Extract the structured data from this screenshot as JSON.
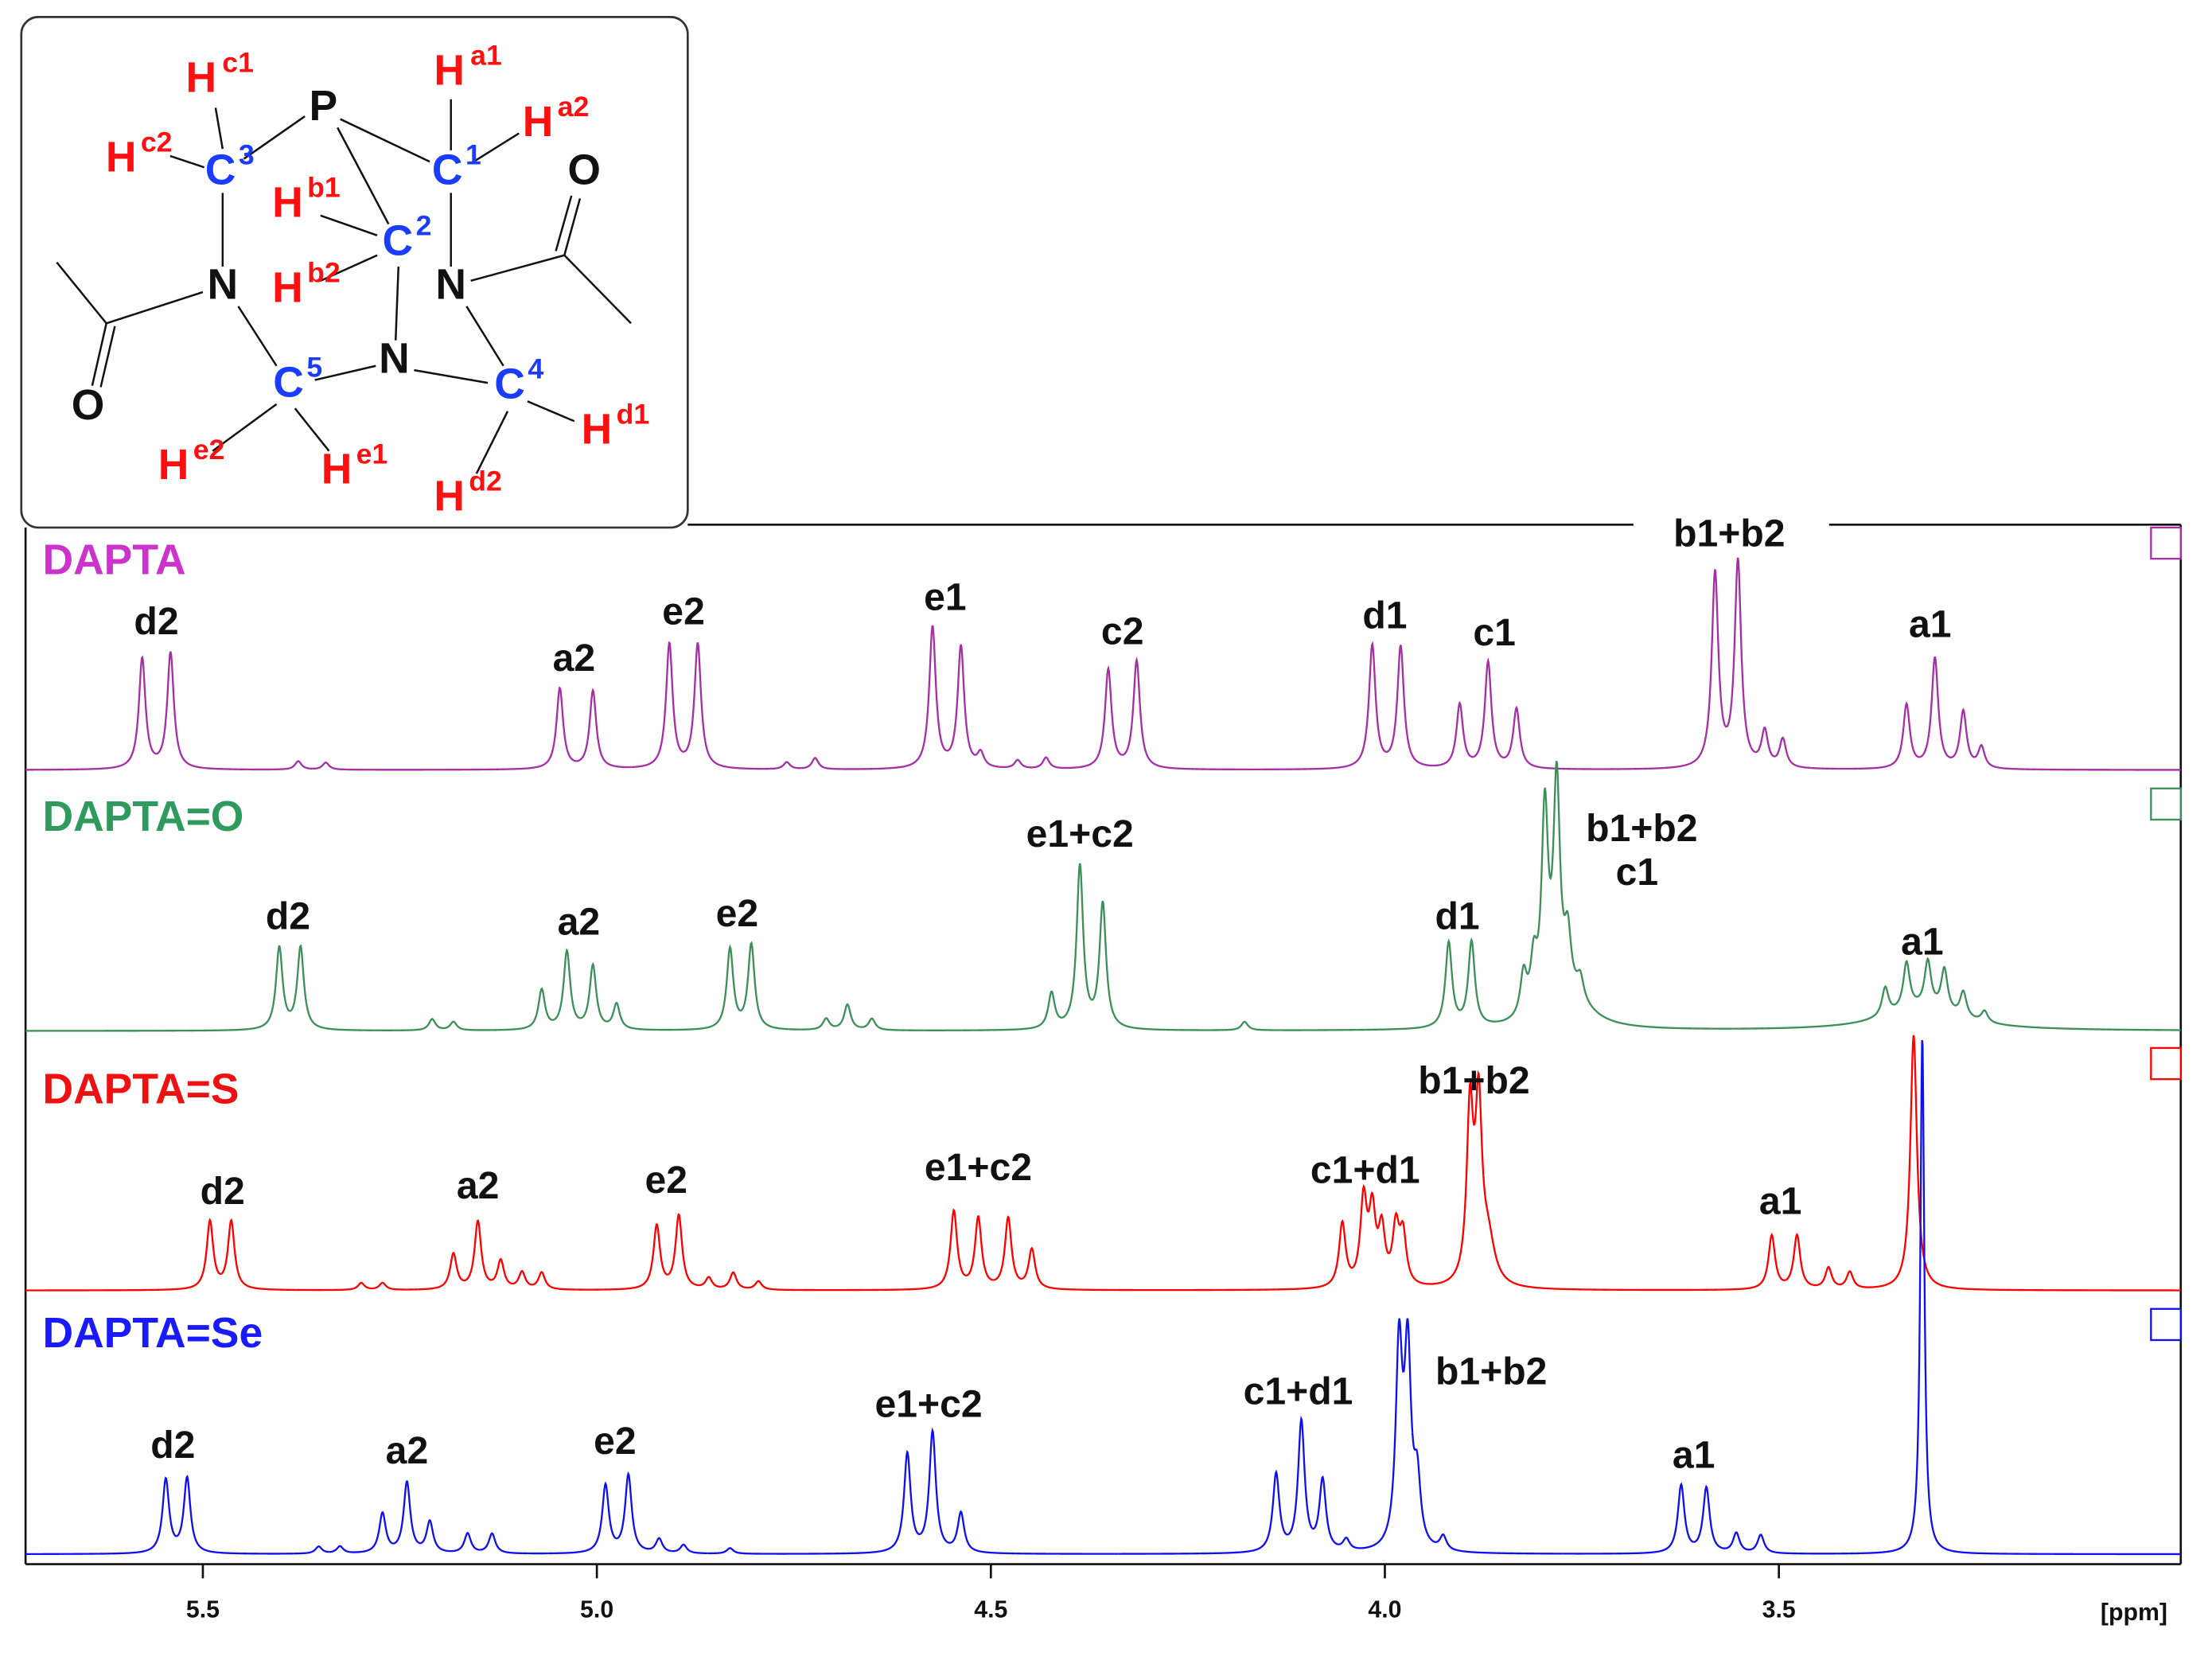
{
  "structure": {
    "atoms": [
      {
        "symbol": "H",
        "label": "c1"
      },
      {
        "symbol": "P",
        "label": null
      },
      {
        "symbol": "H",
        "label": "a1"
      },
      {
        "symbol": "H",
        "label": "a2"
      },
      {
        "symbol": "H",
        "label": "c2"
      },
      {
        "symbol": "C",
        "label": "3"
      },
      {
        "symbol": "C",
        "label": "1"
      },
      {
        "symbol": "O",
        "label": null
      },
      {
        "symbol": "H",
        "label": "b1"
      },
      {
        "symbol": "C",
        "label": "2"
      },
      {
        "symbol": "H",
        "label": "b2"
      },
      {
        "symbol": "N",
        "label": null
      },
      {
        "symbol": "N",
        "label": null
      },
      {
        "symbol": "N",
        "label": null
      },
      {
        "symbol": "C",
        "label": "5"
      },
      {
        "symbol": "C",
        "label": "4"
      },
      {
        "symbol": "O",
        "label": null
      },
      {
        "symbol": "H",
        "label": "d1"
      },
      {
        "symbol": "H",
        "label": "e2"
      },
      {
        "symbol": "H",
        "label": "e1"
      },
      {
        "symbol": "H",
        "label": "d2"
      }
    ]
  },
  "chart_data": {
    "type": "nmr",
    "xlabel": "[ppm]",
    "xlim": [
      5.725,
      2.99
    ],
    "xticks": [
      5.5,
      {
        "value": 5,
        "label": "5.0"
      },
      4.5,
      {
        "value": 4,
        "label": "4.0"
      },
      3.5
    ],
    "series": [
      {
        "name": "DAPTA",
        "color": "#a62fa6",
        "name_color": "#cc33cc",
        "linewidth": 0.005,
        "peaks": [
          [
            5.577,
            78
          ],
          [
            5.541,
            82
          ],
          [
            5.379,
            6
          ],
          [
            5.344,
            5
          ],
          [
            5.047,
            57
          ],
          [
            5.005,
            55
          ],
          [
            4.908,
            88
          ],
          [
            4.872,
            88
          ],
          [
            4.759,
            5
          ],
          [
            4.723,
            8
          ],
          [
            4.574,
            100
          ],
          [
            4.538,
            86
          ],
          [
            4.513,
            10
          ],
          [
            4.466,
            6
          ],
          [
            4.43,
            8
          ],
          [
            4.351,
            70
          ],
          [
            4.315,
            76
          ],
          [
            4.016,
            87
          ],
          [
            3.98,
            86
          ],
          [
            3.905,
            45
          ],
          [
            3.869,
            75
          ],
          [
            3.833,
            42
          ],
          [
            3.581,
            137
          ],
          [
            3.552,
            145
          ],
          [
            3.518,
            25
          ],
          [
            3.495,
            20
          ],
          [
            3.338,
            45
          ],
          [
            3.302,
            78
          ],
          [
            3.266,
            40
          ],
          [
            3.243,
            15
          ]
        ],
        "annotations": [
          {
            "text": "d2",
            "x": 5.559,
            "y": 103
          },
          {
            "text": "a2",
            "x": 5.029,
            "y": 77
          },
          {
            "text": "e2",
            "x": 4.89,
            "y": 110
          },
          {
            "text": "e1",
            "x": 4.558,
            "y": 120
          },
          {
            "text": "c2",
            "x": 4.333,
            "y": 96
          },
          {
            "text": "d1",
            "x": 4.0,
            "y": 107
          },
          {
            "text": "c1",
            "x": 3.861,
            "y": 95
          },
          {
            "text": "b1+b2",
            "x": 3.563,
            "y": 165
          },
          {
            "text": "a1",
            "x": 3.308,
            "y": 101
          }
        ]
      },
      {
        "name": "DAPTA=O",
        "color": "#3d8f5a",
        "name_color": "#2e9a5e",
        "linewidth": 0.005,
        "peaks": [
          [
            5.403,
            58
          ],
          [
            5.376,
            58
          ],
          [
            5.209,
            8
          ],
          [
            5.182,
            6
          ],
          [
            5.07,
            28
          ],
          [
            5.038,
            55
          ],
          [
            5.005,
            45
          ],
          [
            4.975,
            18
          ],
          [
            4.831,
            57
          ],
          [
            4.804,
            60
          ],
          [
            4.709,
            8
          ],
          [
            4.682,
            18
          ],
          [
            4.651,
            8
          ],
          [
            4.423,
            25
          ],
          [
            4.387,
            115
          ],
          [
            4.358,
            88
          ],
          [
            4.178,
            6
          ],
          [
            3.919,
            60
          ],
          [
            3.89,
            60
          ],
          [
            3.824,
            30
          ],
          [
            3.811,
            35
          ],
          [
            3.797,
            140
          ],
          [
            3.782,
            155
          ],
          [
            3.768,
            40
          ],
          [
            3.764,
            20,
            0.03
          ],
          [
            3.752,
            15
          ],
          [
            3.365,
            20
          ],
          [
            3.338,
            33
          ],
          [
            3.32,
            15,
            0.06
          ],
          [
            3.311,
            33
          ],
          [
            3.29,
            30
          ],
          [
            3.266,
            18
          ],
          [
            3.239,
            8
          ]
        ],
        "annotations": [
          {
            "text": "d2",
            "x": 5.392,
            "y": 79
          },
          {
            "text": "a2",
            "x": 5.023,
            "y": 75
          },
          {
            "text": "e2",
            "x": 4.822,
            "y": 81
          },
          {
            "text": "e1+c2",
            "x": 4.387,
            "y": 137
          },
          {
            "text": "d1",
            "x": 3.908,
            "y": 79
          },
          {
            "text": "b1+b2",
            "x": 3.674,
            "y": 141
          },
          {
            "text": "c1",
            "x": 3.68,
            "y": 110
          },
          {
            "text": "a1",
            "x": 3.318,
            "y": 61
          }
        ]
      },
      {
        "name": "DAPTA=S",
        "color": "#ff0000",
        "name_color": "#ee1111",
        "linewidth": 0.005,
        "peaks": [
          [
            5.491,
            48
          ],
          [
            5.464,
            48
          ],
          [
            5.299,
            5
          ],
          [
            5.272,
            5
          ],
          [
            5.182,
            25
          ],
          [
            5.151,
            48
          ],
          [
            5.122,
            20
          ],
          [
            5.095,
            12
          ],
          [
            5.07,
            12
          ],
          [
            4.924,
            45
          ],
          [
            4.896,
            52
          ],
          [
            4.858,
            8
          ],
          [
            4.827,
            12
          ],
          [
            4.795,
            6
          ],
          [
            4.547,
            55
          ],
          [
            4.516,
            50
          ],
          [
            4.478,
            50
          ],
          [
            4.448,
            28
          ],
          [
            4.054,
            45
          ],
          [
            4.027,
            60
          ],
          [
            4.016,
            50
          ],
          [
            4.004,
            38
          ],
          [
            3.986,
            40
          ],
          [
            3.977,
            35
          ],
          [
            3.892,
            120
          ],
          [
            3.881,
            120
          ],
          [
            3.869,
            30,
            0.01
          ],
          [
            3.509,
            38
          ],
          [
            3.477,
            38
          ],
          [
            3.437,
            15
          ],
          [
            3.41,
            12
          ],
          [
            3.329,
            180
          ]
        ],
        "annotations": [
          {
            "text": "d2",
            "x": 5.475,
            "y": 68
          },
          {
            "text": "a2",
            "x": 5.151,
            "y": 72
          },
          {
            "text": "e2",
            "x": 4.912,
            "y": 76
          },
          {
            "text": "e1+c2",
            "x": 4.516,
            "y": 85
          },
          {
            "text": "c1+d1",
            "x": 4.025,
            "y": 83
          },
          {
            "text": "b1+b2",
            "x": 3.887,
            "y": 146
          },
          {
            "text": "a1",
            "x": 3.498,
            "y": 61
          }
        ]
      },
      {
        "name": "DAPTA=Se",
        "color": "#1010ee",
        "name_color": "#1a1aff",
        "linewidth": 0.005,
        "peaks": [
          [
            5.547,
            52
          ],
          [
            5.52,
            53
          ],
          [
            5.353,
            5
          ],
          [
            5.326,
            5
          ],
          [
            5.272,
            28
          ],
          [
            5.241,
            50
          ],
          [
            5.212,
            22
          ],
          [
            5.164,
            14
          ],
          [
            5.133,
            14
          ],
          [
            4.989,
            48
          ],
          [
            4.96,
            55
          ],
          [
            4.921,
            10
          ],
          [
            4.89,
            6
          ],
          [
            4.831,
            4
          ],
          [
            4.606,
            70
          ],
          [
            4.574,
            85
          ],
          [
            4.538,
            28
          ],
          [
            4.138,
            55
          ],
          [
            4.106,
            92
          ],
          [
            4.079,
            50
          ],
          [
            4.049,
            8
          ],
          [
            3.982,
            140
          ],
          [
            3.971,
            135
          ],
          [
            3.959,
            45
          ],
          [
            3.926,
            10
          ],
          [
            3.624,
            48
          ],
          [
            3.592,
            46
          ],
          [
            3.554,
            14
          ],
          [
            3.523,
            13
          ],
          [
            3.318,
            366,
            0.003
          ]
        ],
        "annotations": [
          {
            "text": "d2",
            "x": 5.538,
            "y": 75
          },
          {
            "text": "a2",
            "x": 5.241,
            "y": 71
          },
          {
            "text": "e2",
            "x": 4.977,
            "y": 78
          },
          {
            "text": "e1+c2",
            "x": 4.579,
            "y": 104
          },
          {
            "text": "c1+d1",
            "x": 4.11,
            "y": 113
          },
          {
            "text": "b1+b2",
            "x": 3.865,
            "y": 127
          },
          {
            "text": "a1",
            "x": 3.608,
            "y": 68
          }
        ]
      }
    ]
  }
}
